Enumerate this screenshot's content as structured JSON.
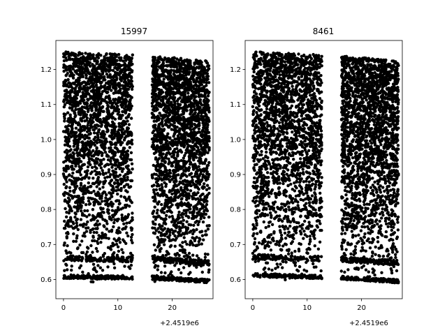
{
  "chart_data": [
    {
      "type": "scatter",
      "title": "15997",
      "x_offset_label": "+2.4519e6",
      "xlim": [
        -1.4,
        27.5
      ],
      "ylim": [
        0.545,
        1.283
      ],
      "xticks": [
        0,
        10,
        20
      ],
      "yticks": [
        0.6,
        0.7,
        0.8,
        0.9,
        1.0,
        1.1,
        1.2
      ],
      "ytick_labels": [
        "0.6",
        "0.7",
        "0.8",
        "0.9",
        "1.0",
        "1.1",
        "1.2"
      ],
      "segments": [
        {
          "x_start": 0.0,
          "x_end": 12.7,
          "y_bottom_start": 0.593,
          "y_bottom_end": 0.59,
          "y_top_start": 1.251,
          "y_top_end": 1.242
        },
        {
          "x_start": 16.3,
          "x_end": 26.8,
          "y_bottom_start": 0.59,
          "y_bottom_end": 0.58,
          "y_top_start": 1.24,
          "y_top_end": 1.224
        }
      ],
      "color": "#000000"
    },
    {
      "type": "scatter",
      "title": "8461",
      "x_offset_label": "+2.4519e6",
      "xlim": [
        -1.4,
        27.5
      ],
      "ylim": [
        0.545,
        1.283
      ],
      "xticks": [
        0,
        10,
        20
      ],
      "yticks": [
        0.6,
        0.7,
        0.8,
        0.9,
        1.0,
        1.1,
        1.2
      ],
      "ytick_labels": [
        "0.6",
        "0.7",
        "0.8",
        "0.9",
        "1.0",
        "1.1",
        "1.2"
      ],
      "segments": [
        {
          "x_start": 0.0,
          "x_end": 12.7,
          "y_bottom_start": 0.597,
          "y_bottom_end": 0.592,
          "y_top_start": 1.251,
          "y_top_end": 1.242
        },
        {
          "x_start": 16.3,
          "x_end": 26.8,
          "y_bottom_start": 0.59,
          "y_bottom_end": 0.58,
          "y_top_start": 1.24,
          "y_top_end": 1.224
        }
      ],
      "color": "#000000"
    }
  ]
}
